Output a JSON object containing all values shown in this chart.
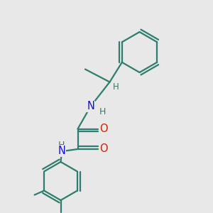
{
  "bg_color": "#e8e8e8",
  "bond_color": "#2e7d6e",
  "N_color": "#1010dd",
  "O_color": "#cc2200",
  "lw": 1.6,
  "xlim": [
    0,
    10
  ],
  "ylim": [
    0,
    10
  ]
}
